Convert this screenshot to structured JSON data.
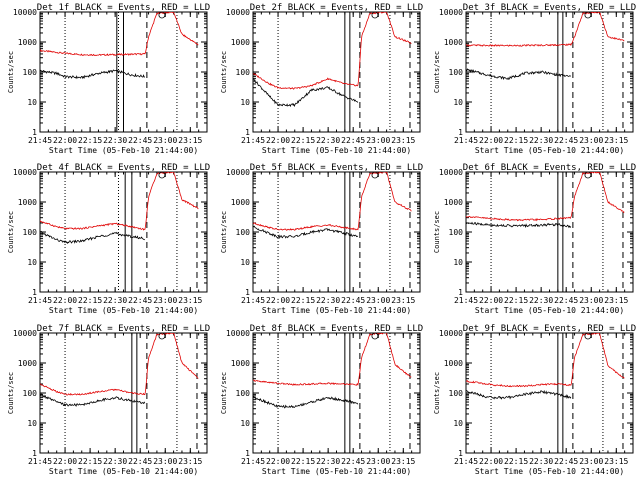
{
  "figure": {
    "xlabel": "Start Time (05-Feb-10 21:44:00)",
    "ylabel": "Counts/sec"
  },
  "chart_data": [
    {
      "type": "line",
      "title": "Det 1f BLACK = Events, RED = LLD",
      "xlabel": "Start Time (05-Feb-10 21:44:00)",
      "ylabel": "Counts/sec",
      "x_ticks": [
        "21:45",
        "22:00",
        "22:15",
        "22:30",
        "22:45",
        "23:00",
        "23:15"
      ],
      "y_ticks": [
        "1",
        "10",
        "100",
        "1000",
        "10000"
      ],
      "y_scale": "log",
      "ylim": [
        1,
        10000
      ],
      "vlines_dotted": [
        "22:00",
        "22:32",
        "23:07"
      ],
      "vlines_solid": [
        "22:31",
        "22:35"
      ],
      "vlines_dashed": [
        "22:49",
        "23:19"
      ],
      "circle_marker": "22:58",
      "series": [
        {
          "color": "red",
          "x": [
            "21:45",
            "22:00",
            "22:10",
            "22:20",
            "22:30",
            "22:40",
            "22:48",
            "22:50",
            "22:55",
            "23:05",
            "23:10",
            "23:20"
          ],
          "y": [
            520,
            420,
            380,
            370,
            380,
            390,
            400,
            1500,
            9000,
            10000,
            1800,
            800
          ]
        },
        {
          "color": "black",
          "x": [
            "21:45",
            "21:55",
            "22:00",
            "22:10",
            "22:20",
            "22:30",
            "22:40",
            "22:48"
          ],
          "y": [
            110,
            90,
            70,
            65,
            90,
            110,
            80,
            70
          ]
        }
      ]
    },
    {
      "type": "line",
      "title": "Det 2f BLACK = Events, RED = LLD",
      "xlabel": "Start Time (05-Feb-10 21:44:00)",
      "ylabel": "Counts/sec",
      "x_ticks": [
        "21:45",
        "22:00",
        "22:15",
        "22:30",
        "22:45",
        "23:00",
        "23:15"
      ],
      "y_ticks": [
        "1",
        "10",
        "100",
        "1000",
        "10000"
      ],
      "y_scale": "log",
      "ylim": [
        1,
        10000
      ],
      "vlines_dotted": [
        "22:00",
        "23:07"
      ],
      "vlines_solid": [
        "22:40",
        "22:43"
      ],
      "vlines_dashed": [
        "22:49",
        "23:19"
      ],
      "circle_marker": "22:58",
      "series": [
        {
          "color": "red",
          "x": [
            "21:45",
            "21:55",
            "22:00",
            "22:10",
            "22:20",
            "22:30",
            "22:40",
            "22:48",
            "22:50",
            "22:55",
            "23:05",
            "23:10",
            "23:20"
          ],
          "y": [
            90,
            40,
            30,
            28,
            35,
            60,
            40,
            35,
            1500,
            9000,
            10000,
            1500,
            900
          ]
        },
        {
          "color": "black",
          "x": [
            "21:45",
            "21:55",
            "22:00",
            "22:10",
            "22:20",
            "22:30",
            "22:40",
            "22:48"
          ],
          "y": [
            60,
            15,
            8,
            8,
            25,
            30,
            15,
            10
          ]
        }
      ]
    },
    {
      "type": "line",
      "title": "Det 3f BLACK = Events, RED = LLD",
      "xlabel": "Start Time (05-Feb-10 21:44:00)",
      "ylabel": "Counts/sec",
      "x_ticks": [
        "21:45",
        "22:00",
        "22:15",
        "22:30",
        "22:45",
        "23:00",
        "23:15"
      ],
      "y_ticks": [
        "1",
        "10",
        "100",
        "1000",
        "10000"
      ],
      "y_scale": "log",
      "ylim": [
        1,
        10000
      ],
      "vlines_dotted": [
        "22:00",
        "23:07"
      ],
      "vlines_solid": [
        "22:40",
        "22:43"
      ],
      "vlines_dashed": [
        "22:49",
        "23:19"
      ],
      "circle_marker": "22:58",
      "series": [
        {
          "color": "red",
          "x": [
            "21:45",
            "22:00",
            "22:15",
            "22:30",
            "22:40",
            "22:48",
            "22:50",
            "22:55",
            "23:05",
            "23:10",
            "23:20"
          ],
          "y": [
            780,
            760,
            760,
            780,
            800,
            820,
            1500,
            9000,
            10000,
            1500,
            1100
          ]
        },
        {
          "color": "black",
          "x": [
            "21:45",
            "22:00",
            "22:10",
            "22:20",
            "22:30",
            "22:40",
            "22:48"
          ],
          "y": [
            120,
            75,
            60,
            90,
            100,
            80,
            70
          ]
        }
      ]
    },
    {
      "type": "line",
      "title": "Det 4f BLACK = Events, RED = LLD",
      "xlabel": "Start Time (05-Feb-10 21:44:00)",
      "ylabel": "Counts/sec",
      "x_ticks": [
        "21:45",
        "22:00",
        "22:15",
        "22:30",
        "22:45",
        "23:00",
        "23:15"
      ],
      "y_ticks": [
        "1",
        "10",
        "100",
        "1000",
        "10000"
      ],
      "y_scale": "log",
      "ylim": [
        1,
        10000
      ],
      "vlines_dotted": [
        "22:00",
        "22:32",
        "23:07"
      ],
      "vlines_solid": [
        "22:36",
        "22:40"
      ],
      "vlines_dashed": [
        "22:49",
        "23:19"
      ],
      "circle_marker": "22:58",
      "series": [
        {
          "color": "red",
          "x": [
            "21:45",
            "21:55",
            "22:00",
            "22:10",
            "22:20",
            "22:30",
            "22:40",
            "22:48",
            "22:50",
            "22:55",
            "23:05",
            "23:10",
            "23:20"
          ],
          "y": [
            230,
            150,
            130,
            130,
            160,
            190,
            150,
            120,
            1500,
            9000,
            10000,
            1200,
            600
          ]
        },
        {
          "color": "black",
          "x": [
            "21:45",
            "21:55",
            "22:00",
            "22:10",
            "22:20",
            "22:30",
            "22:40",
            "22:48"
          ],
          "y": [
            100,
            55,
            45,
            50,
            70,
            90,
            70,
            60
          ]
        }
      ]
    },
    {
      "type": "line",
      "title": "Det 5f BLACK = Events, RED = LLD",
      "xlabel": "Start Time (05-Feb-10 21:44:00)",
      "ylabel": "Counts/sec",
      "x_ticks": [
        "21:45",
        "22:00",
        "22:15",
        "22:30",
        "22:45",
        "23:00",
        "23:15"
      ],
      "y_ticks": [
        "1",
        "10",
        "100",
        "1000",
        "10000"
      ],
      "y_scale": "log",
      "ylim": [
        1,
        10000
      ],
      "vlines_dotted": [
        "22:00",
        "23:07"
      ],
      "vlines_solid": [
        "22:40",
        "22:43"
      ],
      "vlines_dashed": [
        "22:49",
        "23:19"
      ],
      "circle_marker": "22:58",
      "series": [
        {
          "color": "red",
          "x": [
            "21:45",
            "21:55",
            "22:00",
            "22:10",
            "22:20",
            "22:30",
            "22:40",
            "22:48",
            "22:50",
            "22:55",
            "23:05",
            "23:10",
            "23:20"
          ],
          "y": [
            200,
            140,
            120,
            120,
            150,
            170,
            140,
            120,
            1500,
            9000,
            10000,
            1000,
            500
          ]
        },
        {
          "color": "black",
          "x": [
            "21:45",
            "21:55",
            "22:00",
            "22:10",
            "22:20",
            "22:30",
            "22:40",
            "22:48"
          ],
          "y": [
            150,
            90,
            70,
            70,
            100,
            120,
            90,
            70
          ]
        }
      ]
    },
    {
      "type": "line",
      "title": "Det 6f BLACK = Events, RED = LLD",
      "xlabel": "Start Time (05-Feb-10 21:44:00)",
      "ylabel": "Counts/sec",
      "x_ticks": [
        "21:45",
        "22:00",
        "22:15",
        "22:30",
        "22:45",
        "23:00",
        "23:15"
      ],
      "y_ticks": [
        "1",
        "10",
        "100",
        "1000",
        "10000"
      ],
      "y_scale": "log",
      "ylim": [
        1,
        10000
      ],
      "vlines_dotted": [
        "22:00",
        "23:07"
      ],
      "vlines_solid": [
        "22:40",
        "22:43"
      ],
      "vlines_dashed": [
        "22:49",
        "23:19"
      ],
      "circle_marker": "22:58",
      "series": [
        {
          "color": "red",
          "x": [
            "21:45",
            "22:00",
            "22:15",
            "22:30",
            "22:40",
            "22:48",
            "22:50",
            "22:55",
            "23:05",
            "23:10",
            "23:20"
          ],
          "y": [
            330,
            280,
            250,
            260,
            280,
            300,
            1500,
            9000,
            10000,
            1000,
            450
          ]
        },
        {
          "color": "black",
          "x": [
            "21:45",
            "22:00",
            "22:15",
            "22:30",
            "22:40",
            "22:48"
          ],
          "y": [
            200,
            170,
            160,
            170,
            180,
            150
          ]
        }
      ]
    },
    {
      "type": "line",
      "title": "Det 7f BLACK = Events, RED = LLD",
      "xlabel": "Start Time (05-Feb-10 21:44:00)",
      "ylabel": "Counts/sec",
      "x_ticks": [
        "21:45",
        "22:00",
        "22:15",
        "22:30",
        "22:45",
        "23:00",
        "23:15"
      ],
      "y_ticks": [
        "1",
        "10",
        "100",
        "1000",
        "10000"
      ],
      "y_scale": "log",
      "ylim": [
        1,
        10000
      ],
      "vlines_dotted": [
        "22:00",
        "23:07"
      ],
      "vlines_solid": [
        "22:40",
        "22:43"
      ],
      "vlines_dashed": [
        "22:49",
        "23:19"
      ],
      "circle_marker": "22:58",
      "series": [
        {
          "color": "red",
          "x": [
            "21:45",
            "21:55",
            "22:00",
            "22:10",
            "22:20",
            "22:30",
            "22:40",
            "22:48",
            "22:50",
            "22:55",
            "23:05",
            "23:10",
            "23:20"
          ],
          "y": [
            200,
            110,
            90,
            90,
            110,
            130,
            100,
            90,
            1500,
            9000,
            10000,
            1000,
            300
          ]
        },
        {
          "color": "black",
          "x": [
            "21:45",
            "21:55",
            "22:00",
            "22:10",
            "22:20",
            "22:30",
            "22:40",
            "22:48"
          ],
          "y": [
            90,
            50,
            40,
            40,
            55,
            70,
            55,
            45
          ]
        }
      ]
    },
    {
      "type": "line",
      "title": "Det 8f BLACK = Events, RED = LLD",
      "xlabel": "Start Time (05-Feb-10 21:44:00)",
      "ylabel": "Counts/sec",
      "x_ticks": [
        "21:45",
        "22:00",
        "22:15",
        "22:30",
        "22:45",
        "23:00",
        "23:15"
      ],
      "y_ticks": [
        "1",
        "10",
        "100",
        "1000",
        "10000"
      ],
      "y_scale": "log",
      "ylim": [
        1,
        10000
      ],
      "vlines_dotted": [
        "22:00",
        "23:07"
      ],
      "vlines_solid": [
        "22:40",
        "22:43"
      ],
      "vlines_dashed": [
        "22:49",
        "23:19"
      ],
      "circle_marker": "22:58",
      "series": [
        {
          "color": "red",
          "x": [
            "21:45",
            "22:00",
            "22:10",
            "22:20",
            "22:30",
            "22:40",
            "22:48",
            "22:50",
            "22:55",
            "23:05",
            "23:10",
            "23:20"
          ],
          "y": [
            260,
            210,
            190,
            200,
            210,
            200,
            190,
            1500,
            9000,
            10000,
            900,
            320
          ]
        },
        {
          "color": "black",
          "x": [
            "21:45",
            "21:55",
            "22:00",
            "22:10",
            "22:20",
            "22:30",
            "22:40",
            "22:48"
          ],
          "y": [
            75,
            45,
            35,
            35,
            50,
            70,
            55,
            45
          ]
        }
      ]
    },
    {
      "type": "line",
      "title": "Det 9f BLACK = Events, RED = LLD",
      "xlabel": "Start Time (05-Feb-10 21:44:00)",
      "ylabel": "Counts/sec",
      "x_ticks": [
        "21:45",
        "22:00",
        "22:15",
        "22:30",
        "22:45",
        "23:00",
        "23:15"
      ],
      "y_ticks": [
        "1",
        "10",
        "100",
        "1000",
        "10000"
      ],
      "y_scale": "log",
      "ylim": [
        1,
        10000
      ],
      "vlines_dotted": [
        "22:00",
        "23:07"
      ],
      "vlines_solid": [
        "22:40",
        "22:43"
      ],
      "vlines_dashed": [
        "22:49",
        "23:19"
      ],
      "circle_marker": "22:58",
      "series": [
        {
          "color": "red",
          "x": [
            "21:45",
            "22:00",
            "22:10",
            "22:20",
            "22:30",
            "22:40",
            "22:48",
            "22:50",
            "22:55",
            "23:05",
            "23:10",
            "23:20"
          ],
          "y": [
            250,
            190,
            170,
            170,
            190,
            200,
            180,
            1500,
            9000,
            10000,
            800,
            300
          ]
        },
        {
          "color": "black",
          "x": [
            "21:45",
            "21:55",
            "22:00",
            "22:10",
            "22:20",
            "22:30",
            "22:40",
            "22:48"
          ],
          "y": [
            120,
            80,
            70,
            70,
            90,
            110,
            90,
            70
          ]
        }
      ]
    }
  ]
}
